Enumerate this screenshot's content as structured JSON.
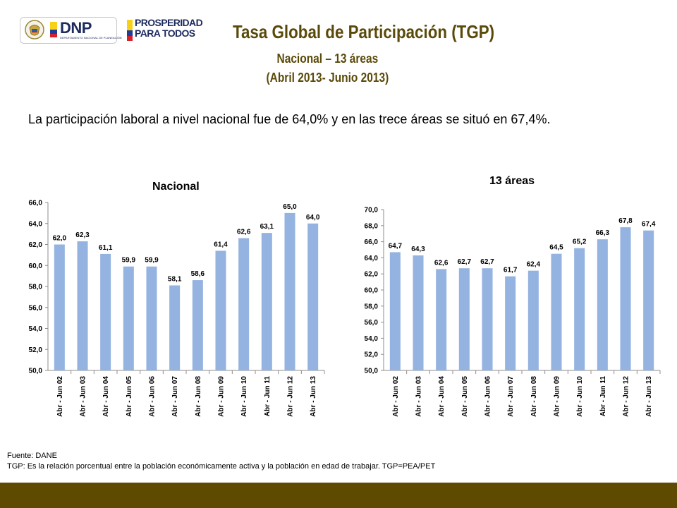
{
  "header": {
    "logo_dnp": "DNP",
    "logo_dnp_sub": "DEPARTAMENTO NACIONAL DE PLANEACIÓN",
    "logo_prosperidad_line1": "PROSPERIDAD",
    "logo_prosperidad_line2": "PARA TODOS",
    "title": "Tasa Global de Participación (TGP)",
    "subtitle": "Nacional – 13 áreas",
    "period": "(Abril 2013- Junio 2013)"
  },
  "intro_text": "La participación laboral a nivel nacional fue de 64,0% y en las trece áreas se situó en 67,4%.",
  "colors": {
    "bar": "#95b3e0",
    "title": "#5a4a0a",
    "footer": "#5e4a00"
  },
  "chart_data": [
    {
      "type": "bar",
      "title": "Nacional",
      "categories": [
        "Abr - Jun 02",
        "Abr - Jun 03",
        "Abr - Jun 04",
        "Abr - Jun 05",
        "Abr - Jun 06",
        "Abr - Jun 07",
        "Abr - Jun 08",
        "Abr - Jun 09",
        "Abr - Jun 10",
        "Abr - Jun 11",
        "Abr - Jun 12",
        "Abr - Jun 13"
      ],
      "values": [
        62.0,
        62.3,
        61.1,
        59.9,
        59.9,
        58.1,
        58.6,
        61.4,
        62.6,
        63.1,
        65.0,
        64.0
      ],
      "value_labels": [
        "62,0",
        "62,3",
        "61,1",
        "59,9",
        "59,9",
        "58,1",
        "58,6",
        "61,4",
        "62,6",
        "63,1",
        "65,0",
        "64,0"
      ],
      "ylim": [
        50,
        66
      ],
      "yticks": [
        "50,0",
        "52,0",
        "54,0",
        "56,0",
        "58,0",
        "60,0",
        "62,0",
        "64,0",
        "66,0"
      ],
      "grid": false
    },
    {
      "type": "bar",
      "title": "13 áreas",
      "categories": [
        "Abr - Jun 02",
        "Abr - Jun 03",
        "Abr - Jun 04",
        "Abr - Jun 05",
        "Abr - Jun 06",
        "Abr - Jun 07",
        "Abr - Jun 08",
        "Abr - Jun 09",
        "Abr - Jun 10",
        "Abr - Jun 11",
        "Abr - Jun 12",
        "Abr - Jun 13"
      ],
      "values": [
        64.7,
        64.3,
        62.6,
        62.7,
        62.7,
        61.7,
        62.4,
        64.5,
        65.2,
        66.3,
        67.8,
        67.4
      ],
      "value_labels": [
        "64,7",
        "64,3",
        "62,6",
        "62,7",
        "62,7",
        "61,7",
        "62,4",
        "64,5",
        "65,2",
        "66,3",
        "67,8",
        "67,4"
      ],
      "ylim": [
        50,
        70
      ],
      "yticks": [
        "50,0",
        "52,0",
        "54,0",
        "56,0",
        "58,0",
        "60,0",
        "62,0",
        "64,0",
        "66,0",
        "68,0",
        "70,0"
      ],
      "grid": false
    }
  ],
  "footnotes": {
    "source": "Fuente: DANE",
    "definition": "TGP: Es la relación porcentual entre la población económicamente activa y la población  en edad de trabajar. TGP=PEA/PET"
  }
}
